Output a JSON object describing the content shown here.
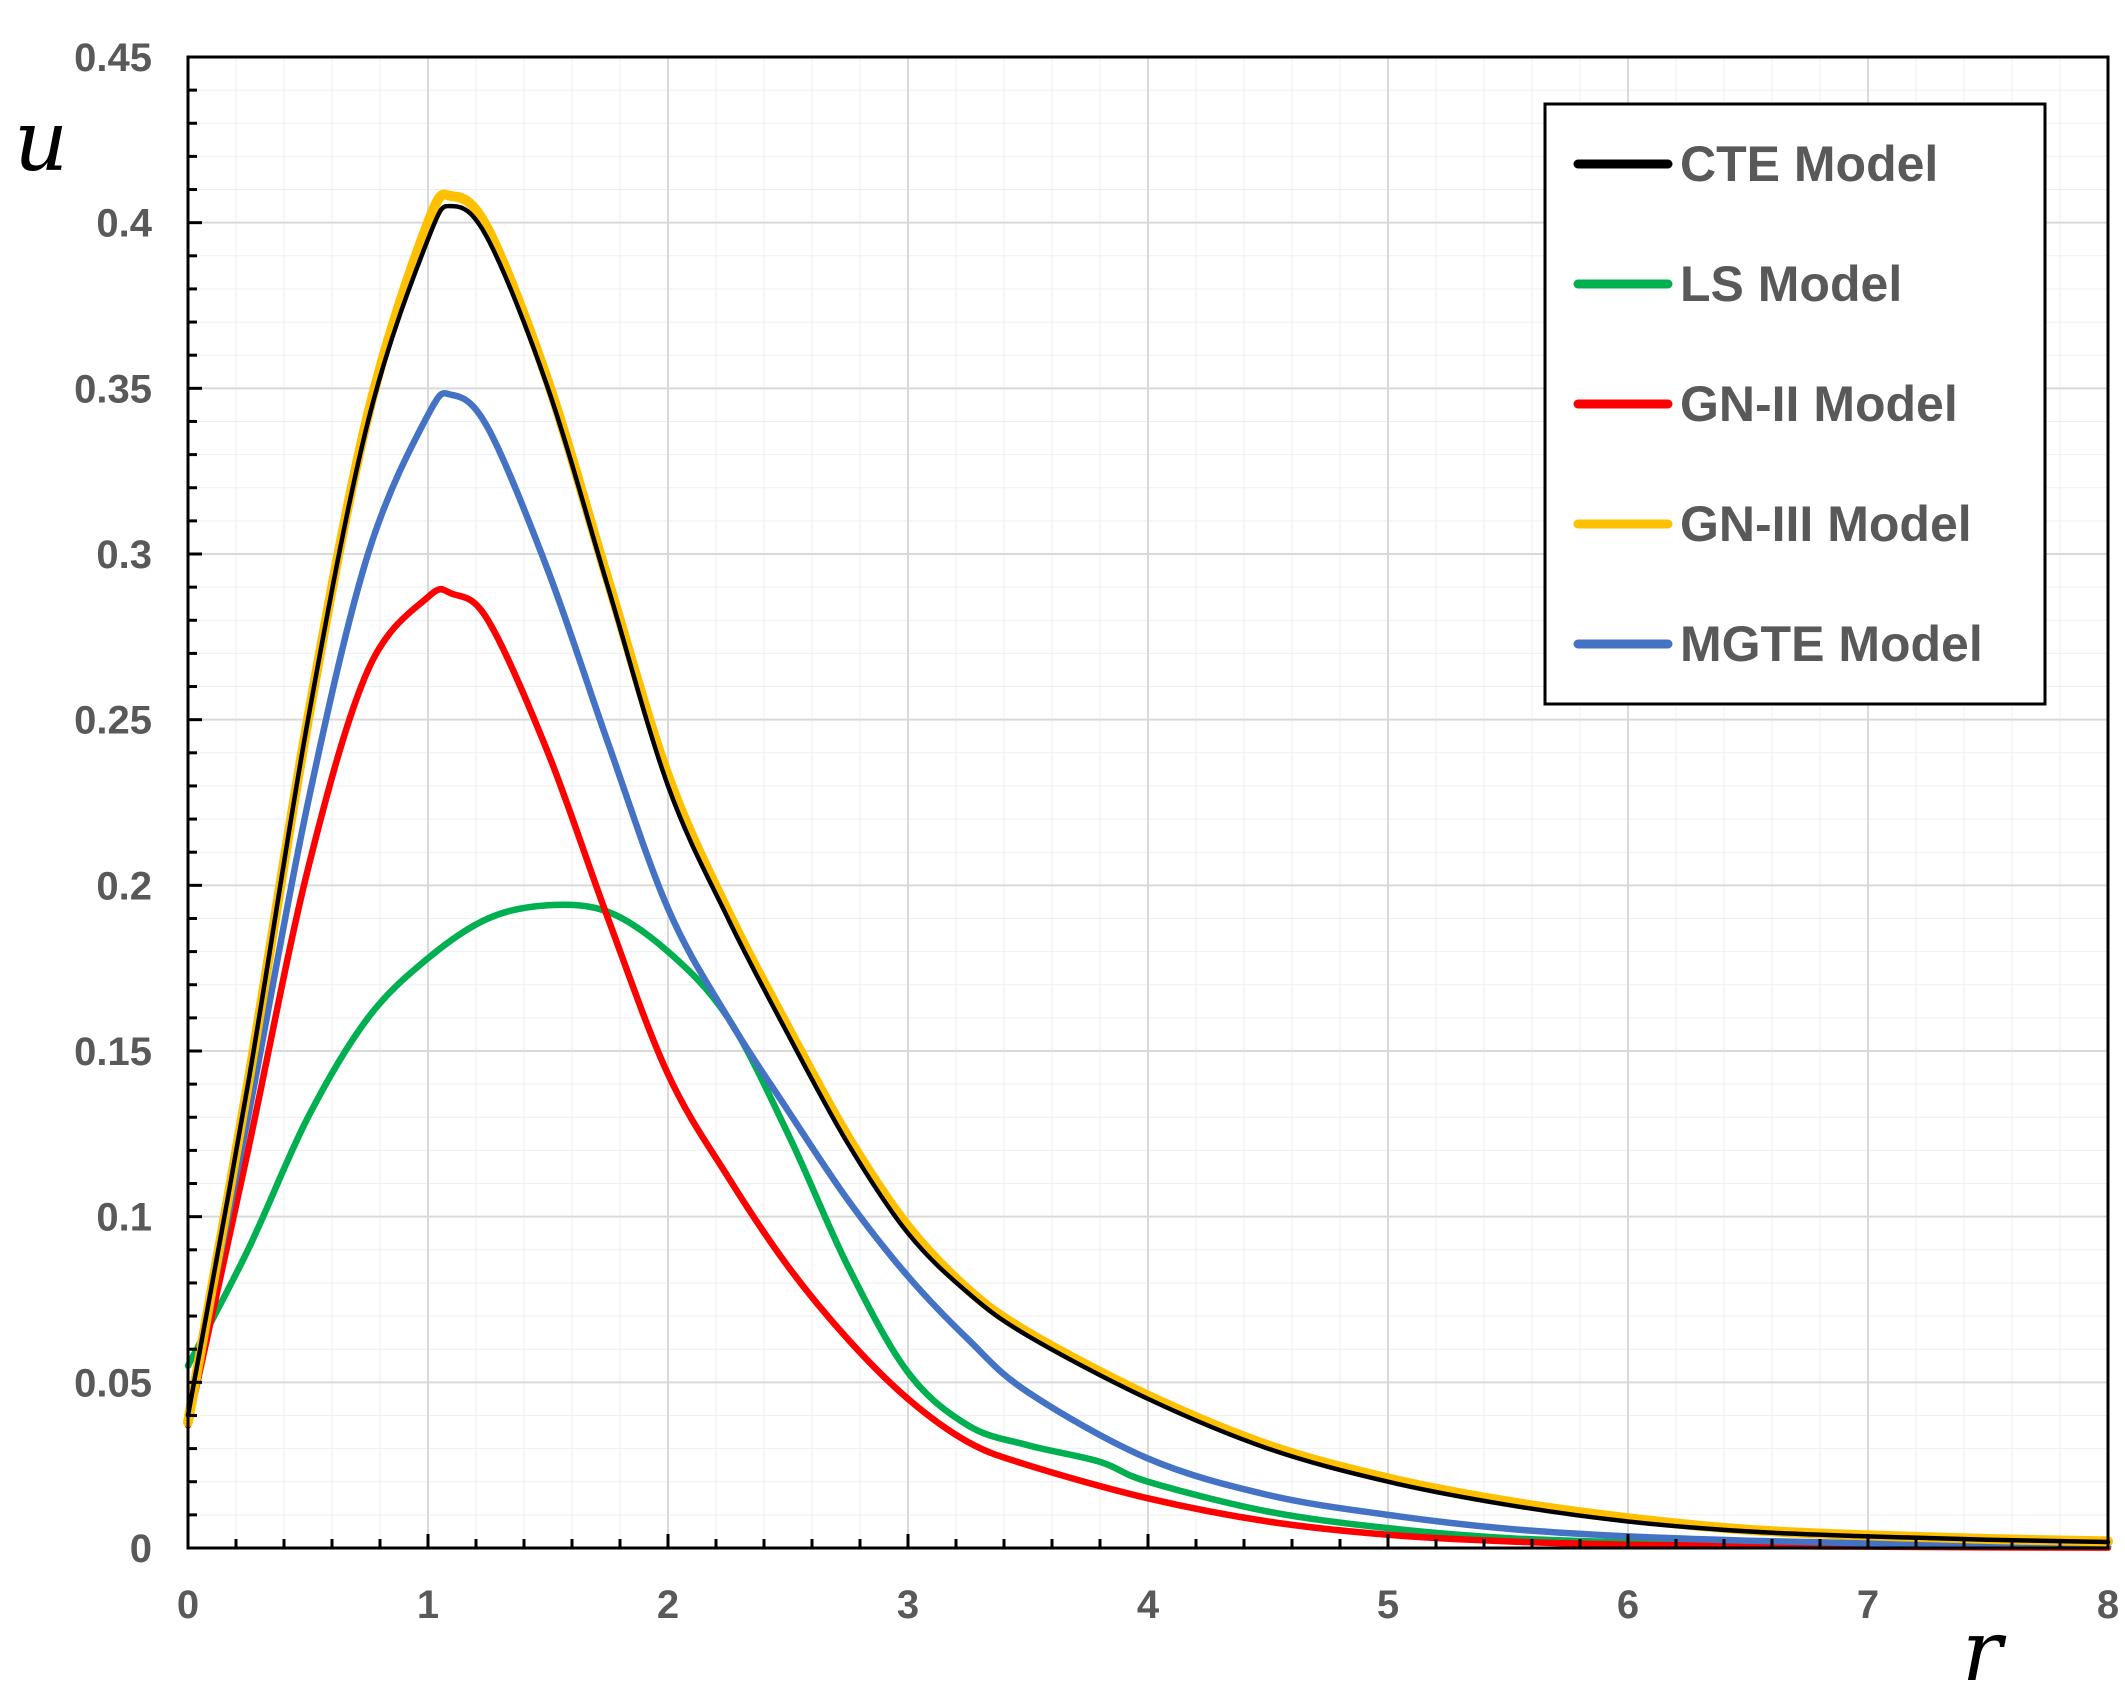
{
  "chart_data": {
    "type": "line",
    "title": "",
    "xlabel": "r",
    "ylabel": "u",
    "xlim": [
      0,
      8
    ],
    "ylim": [
      0,
      0.45
    ],
    "x_ticks": [
      0,
      1,
      2,
      3,
      4,
      5,
      6,
      7,
      8
    ],
    "x_tick_labels": [
      "0",
      "1",
      "2",
      "3",
      "4",
      "5",
      "6",
      "7",
      "8"
    ],
    "y_ticks": [
      0,
      0.05,
      0.1,
      0.15,
      0.2,
      0.25,
      0.3,
      0.35,
      0.4,
      0.45
    ],
    "y_tick_labels": [
      "0",
      "0.05",
      "0.1",
      "0.15",
      "0.2",
      "0.25",
      "0.3",
      "0.35",
      "0.4",
      "0.45"
    ],
    "grid": true,
    "legend_position": "top-right",
    "series": [
      {
        "name": "CTE Model",
        "color": "#000000",
        "x": [
          0,
          0.25,
          0.5,
          0.75,
          1.0,
          1.1,
          1.25,
          1.5,
          1.75,
          2.0,
          2.25,
          2.5,
          2.75,
          3.0,
          3.25,
          3.5,
          4.0,
          4.5,
          5.0,
          5.5,
          6.0,
          6.5,
          7.0,
          7.5,
          8.0
        ],
        "values": [
          0.04,
          0.14,
          0.25,
          0.34,
          0.395,
          0.405,
          0.395,
          0.35,
          0.29,
          0.23,
          0.19,
          0.155,
          0.122,
          0.095,
          0.077,
          0.064,
          0.045,
          0.03,
          0.02,
          0.013,
          0.008,
          0.005,
          0.0035,
          0.0025,
          0.0018
        ]
      },
      {
        "name": "LS Model",
        "color": "#00B050",
        "x": [
          0,
          0.25,
          0.5,
          0.75,
          1.0,
          1.25,
          1.5,
          1.75,
          2.0,
          2.25,
          2.5,
          2.75,
          3.0,
          3.25,
          3.5,
          3.8,
          4.0,
          4.5,
          5.0,
          5.5,
          6.0,
          6.5,
          7.0,
          7.5,
          8.0
        ],
        "values": [
          0.055,
          0.09,
          0.13,
          0.16,
          0.178,
          0.19,
          0.194,
          0.192,
          0.18,
          0.16,
          0.125,
          0.085,
          0.053,
          0.037,
          0.031,
          0.026,
          0.02,
          0.011,
          0.006,
          0.003,
          0.0017,
          0.001,
          0.0006,
          0.0004,
          0.0003
        ]
      },
      {
        "name": "GN-II Model",
        "color": "#FF0000",
        "x": [
          0,
          0.25,
          0.5,
          0.75,
          1.0,
          1.1,
          1.25,
          1.5,
          1.75,
          2.0,
          2.25,
          2.5,
          2.75,
          3.0,
          3.25,
          3.5,
          4.0,
          4.5,
          5.0,
          5.5,
          6.0,
          6.5,
          7.0,
          7.5,
          8.0
        ],
        "values": [
          0.037,
          0.12,
          0.205,
          0.265,
          0.287,
          0.288,
          0.28,
          0.24,
          0.19,
          0.143,
          0.112,
          0.085,
          0.063,
          0.045,
          0.032,
          0.025,
          0.015,
          0.008,
          0.004,
          0.002,
          0.001,
          0.0006,
          0.0004,
          0.0002,
          0.0001
        ]
      },
      {
        "name": "GN-III Model",
        "color": "#FFC000",
        "x": [
          0,
          0.25,
          0.5,
          0.75,
          1.0,
          1.1,
          1.25,
          1.5,
          1.75,
          2.0,
          2.25,
          2.5,
          2.75,
          3.0,
          3.25,
          3.5,
          4.0,
          4.5,
          5.0,
          5.5,
          6.0,
          6.5,
          7.0,
          7.5,
          8.0
        ],
        "values": [
          0.038,
          0.14,
          0.25,
          0.342,
          0.4,
          0.408,
          0.398,
          0.352,
          0.292,
          0.233,
          0.192,
          0.157,
          0.124,
          0.097,
          0.078,
          0.065,
          0.046,
          0.031,
          0.021,
          0.014,
          0.009,
          0.0055,
          0.0038,
          0.0027,
          0.002
        ]
      },
      {
        "name": "MGTE Model",
        "color": "#4472C4",
        "x": [
          0,
          0.25,
          0.5,
          0.75,
          1.0,
          1.1,
          1.25,
          1.5,
          1.75,
          2.0,
          2.25,
          2.5,
          2.75,
          3.0,
          3.25,
          3.5,
          4.0,
          4.5,
          5.0,
          5.5,
          6.0,
          6.5,
          7.0,
          7.5,
          8.0
        ],
        "values": [
          0.04,
          0.13,
          0.225,
          0.3,
          0.342,
          0.348,
          0.338,
          0.295,
          0.243,
          0.193,
          0.16,
          0.132,
          0.105,
          0.082,
          0.063,
          0.047,
          0.027,
          0.016,
          0.01,
          0.0058,
          0.0035,
          0.0022,
          0.0014,
          0.0009,
          0.0006
        ]
      }
    ]
  }
}
